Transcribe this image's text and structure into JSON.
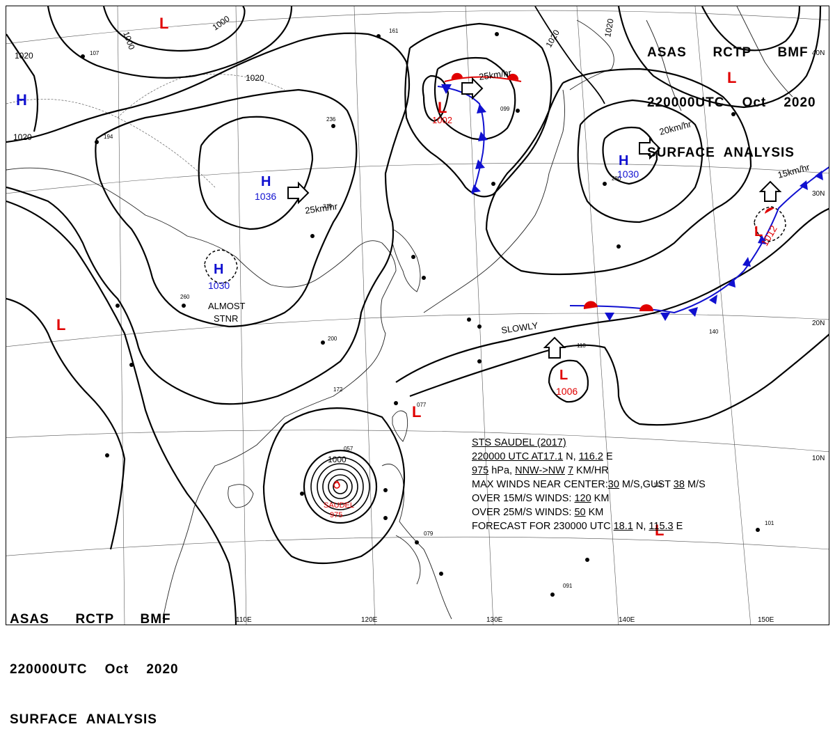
{
  "header": {
    "line1": "ASAS      RCTP      BMF",
    "line2": "220000UTC    Oct    2020",
    "line3": "SURFACE  ANALYSIS"
  },
  "pressure_systems": [
    {
      "type": "L",
      "label": "1002",
      "color": "#e00000"
    },
    {
      "type": "H",
      "label": "1036",
      "color": "#1010d0"
    },
    {
      "type": "H",
      "label": "1030",
      "color": "#1010d0"
    },
    {
      "type": "H",
      "label": "1030",
      "color": "#1010d0"
    },
    {
      "type": "L",
      "label": "1012",
      "color": "#e00000"
    },
    {
      "type": "L",
      "label": "1006",
      "color": "#e00000"
    },
    {
      "type": "L",
      "label": "",
      "color": "#e00000"
    },
    {
      "type": "L",
      "label": "",
      "color": "#e00000"
    },
    {
      "type": "L",
      "label": "",
      "color": "#e00000"
    },
    {
      "type": "L",
      "label": "",
      "color": "#e00000"
    },
    {
      "type": "H",
      "label": "",
      "color": "#1010d0"
    }
  ],
  "motion_labels": {
    "m1": "25km/hr",
    "m2": "25km/hr",
    "m3": "20km/hr",
    "m4": "15km/hr",
    "m5": "SLOWLY",
    "almost": "ALMOST",
    "stnr": "STNR"
  },
  "isobar_labels": {
    "a": "1000",
    "b": "1000",
    "c": "1020",
    "d": "1020",
    "e": "1020",
    "f": "1020",
    "g": "1020",
    "h": "1000"
  },
  "typhoon": {
    "name": "SAUDEL",
    "pressure": "975",
    "line1": "STS  SAUDEL  (2017)",
    "line2a": "220000 UTC  AT",
    "line2b": "17.1",
    "line2c": " N, ",
    "line2d": "116.2",
    "line2e": " E",
    "line3a": "975",
    "line3b": " hPa, ",
    "line3c": "NNW->NW",
    "line3d": "  ",
    "line3e": "7",
    "line3f": " KM/HR",
    "line4a": "MAX WINDS NEAR CENTER:",
    "line4b": "30",
    "line4c": " M/S,GUST ",
    "line4d": "38",
    "line4e": " M/S",
    "line5a": "OVER 15M/S WINDS: ",
    "line5b": "120",
    "line5c": " KM",
    "line6a": "OVER 25M/S WINDS: ",
    "line6b": "50",
    "line6c": " KM",
    "line7a": "FORECAST FOR 230000 UTC ",
    "line7b": "18.1",
    "line7c": " N, ",
    "line7d": "115.3",
    "line7e": " E"
  },
  "graticule": {
    "lon": [
      "110E",
      "120E",
      "130E",
      "140E",
      "150E"
    ],
    "lat": [
      "40N",
      "30N",
      "20N",
      "10N"
    ]
  },
  "colors": {
    "high": "#1010d0",
    "low": "#e00000",
    "isobar": "#000000",
    "cold_front": "#1010d0",
    "warm_front": "#e00000",
    "coast": "#222222"
  }
}
